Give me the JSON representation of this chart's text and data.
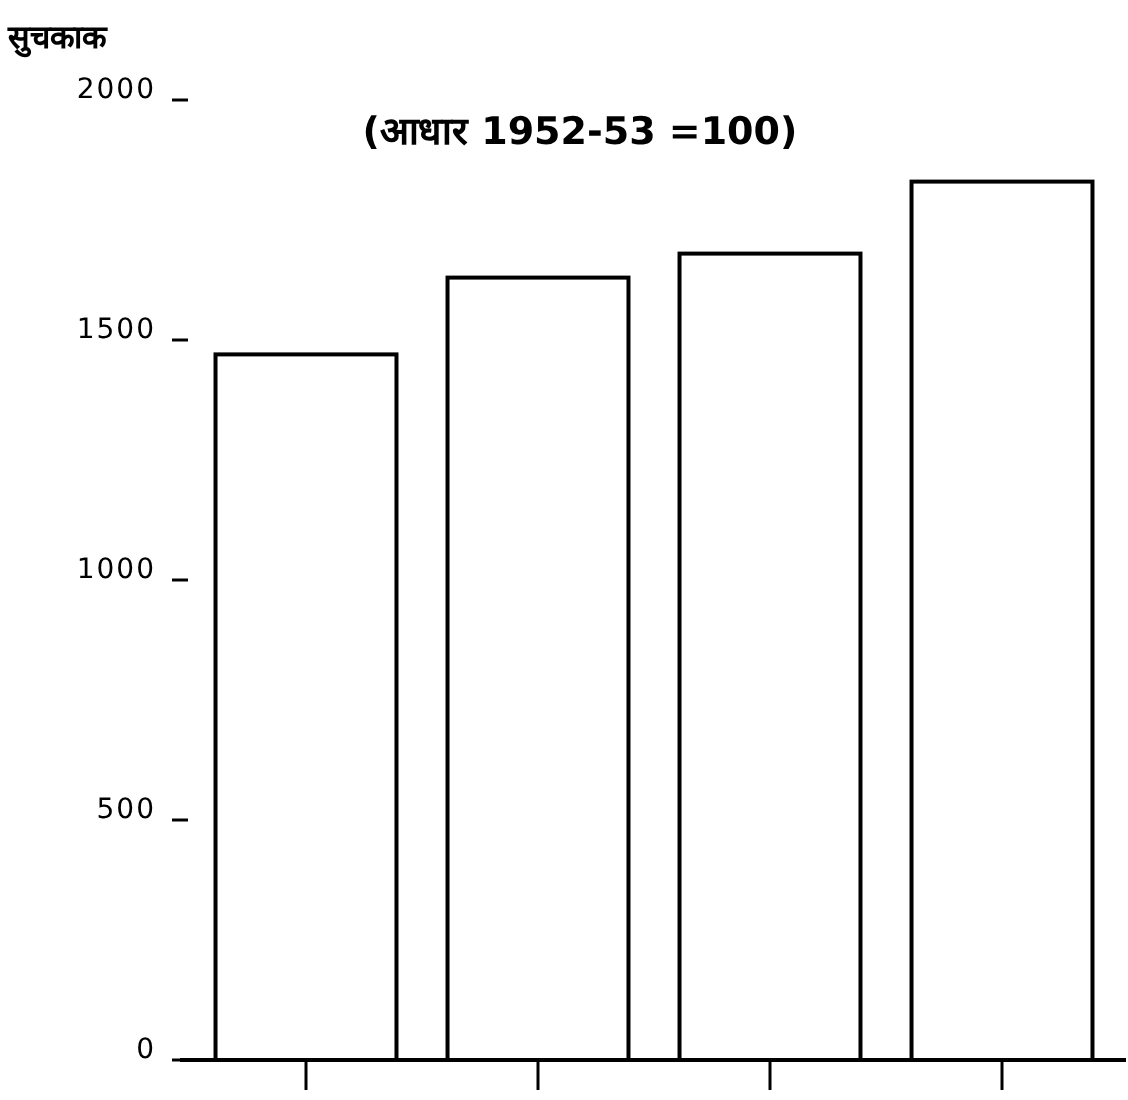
{
  "chart_data": {
    "type": "bar",
    "subtitle": "(आधार 1952-53 =100)",
    "ylabel": "सुचकाक",
    "categories": [
      null,
      null,
      null,
      null
    ],
    "values": [
      1470,
      1630,
      1680,
      1830
    ],
    "color": "#ffffff",
    "ylim": [
      0,
      2000
    ],
    "yticks": [
      0,
      500,
      1000,
      1500,
      2000
    ],
    "grid": false
  }
}
